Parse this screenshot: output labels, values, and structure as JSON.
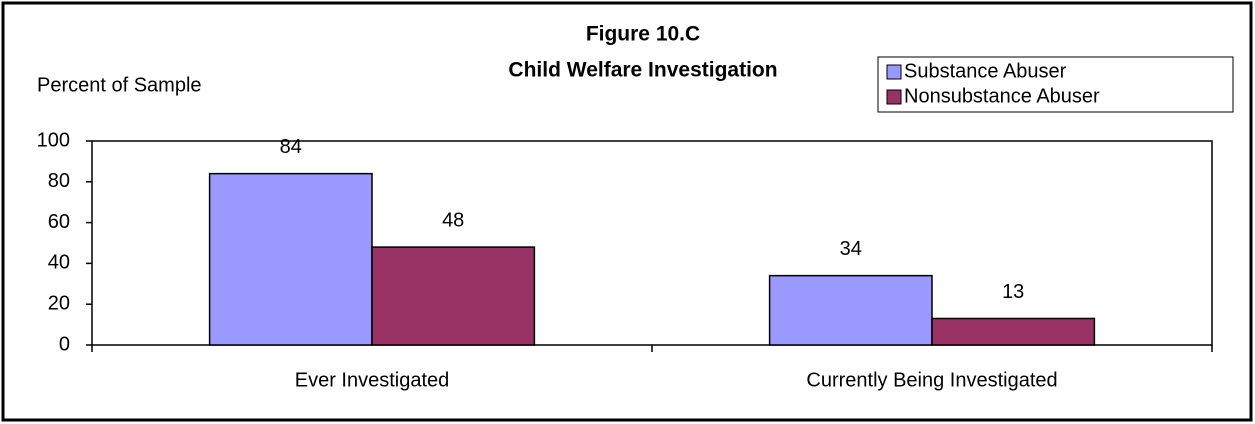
{
  "chart_data": {
    "type": "bar",
    "title": "Figure 10.C",
    "subtitle": "Child Welfare Investigation",
    "y_label": "Percent of Sample",
    "categories": [
      "Ever Investigated",
      "Currently Being Investigated"
    ],
    "series": [
      {
        "name": "Substance Abuser",
        "color": "#9999ff",
        "values": [
          84,
          34
        ]
      },
      {
        "name": "Nonsubstance Abuser",
        "color": "#993366",
        "values": [
          48,
          13
        ]
      }
    ],
    "ylim": [
      0,
      100
    ],
    "yticks": [
      0,
      20,
      40,
      60,
      80,
      100
    ],
    "legend": "top-right",
    "grid": false
  }
}
